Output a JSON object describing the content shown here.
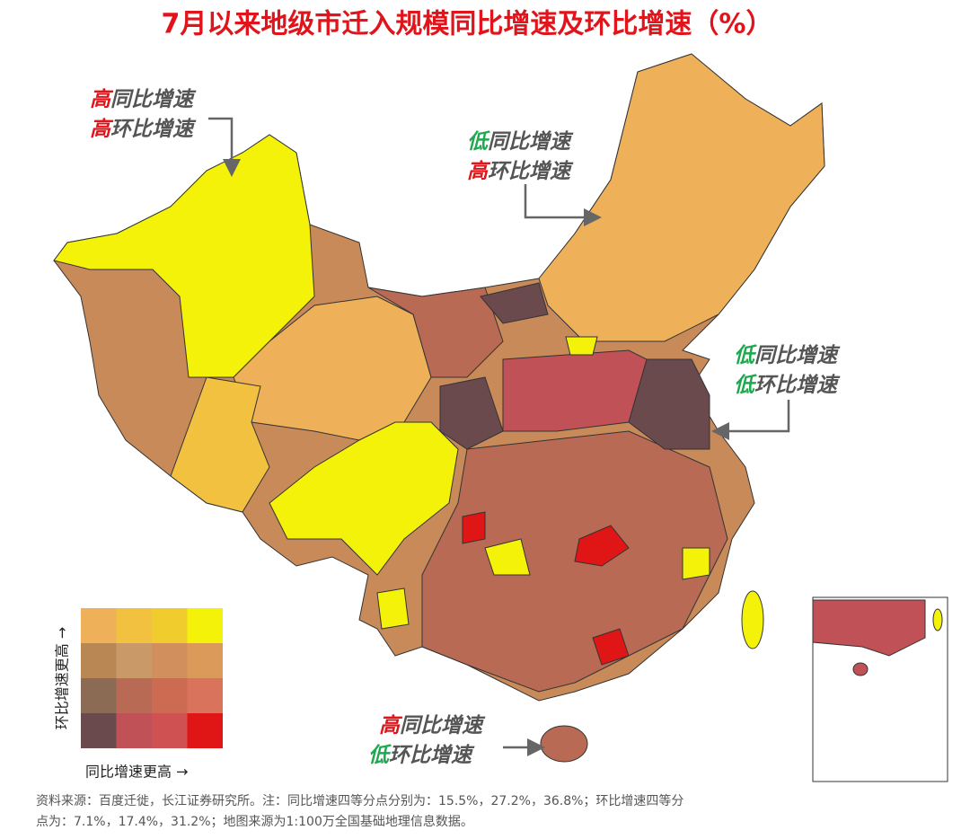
{
  "title": "7月以来地级市迁入规模同比增速及环比增速（%）",
  "annotations": [
    {
      "lines": [
        {
          "level": "高",
          "level_color": "#e0141a",
          "text": "同比增速"
        },
        {
          "level": "高",
          "level_color": "#e0141a",
          "text": "环比增速"
        }
      ]
    },
    {
      "lines": [
        {
          "level": "低",
          "level_color": "#1fa84f",
          "text": "同比增速"
        },
        {
          "level": "高",
          "level_color": "#e0141a",
          "text": "环比增速"
        }
      ]
    },
    {
      "lines": [
        {
          "level": "低",
          "level_color": "#1fa84f",
          "text": "同比增速"
        },
        {
          "level": "低",
          "level_color": "#1fa84f",
          "text": "环比增速"
        }
      ]
    },
    {
      "lines": [
        {
          "level": "高",
          "level_color": "#e0141a",
          "text": "同比增速"
        },
        {
          "level": "低",
          "level_color": "#1fa84f",
          "text": "环比增速"
        }
      ]
    }
  ],
  "legend": {
    "y_label": "环比增速更高 →",
    "x_label": "同比增速更高 →",
    "colors": [
      [
        "#eeb059",
        "#f2c140",
        "#f0cc2c",
        "#f5f20a"
      ],
      [
        "#b98754",
        "#c99a68",
        "#d08f5c",
        "#dc9a5a"
      ],
      [
        "#8c6b55",
        "#b86a55",
        "#cd6b52",
        "#d9735c"
      ],
      [
        "#6b4a4e",
        "#c05257",
        "#cf5151",
        "#e01616"
      ]
    ]
  },
  "source": [
    "资料来源：百度迁徙，长江证券研究所。注：同比增速四等分点分别为：15.5%，27.2%，36.8%；环比增速四等分",
    "点为：7.1%，17.4%，31.2%；地图来源为1:100万全国基础地理信息数据。"
  ]
}
